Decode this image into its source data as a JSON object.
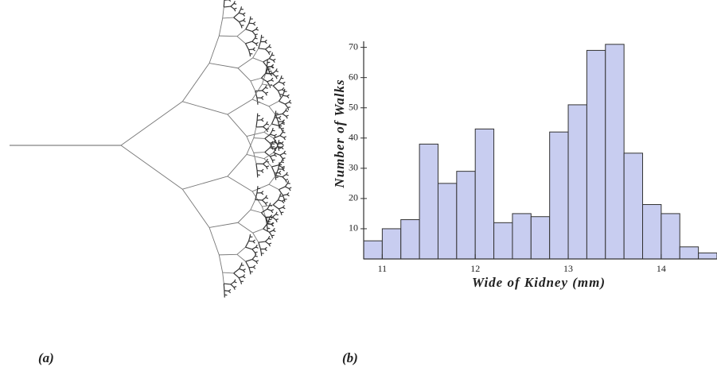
{
  "panel_labels": [
    "(a)",
    "(b)"
  ],
  "chart_data": {
    "type": "histogram",
    "x_label": "Wide of Kidney (mm)",
    "y_label": "Number of Walks",
    "bins": [
      10.8,
      11.0,
      11.2,
      11.4,
      11.6,
      11.8,
      12.0,
      12.2,
      12.4,
      12.6,
      12.8,
      13.0,
      13.2,
      13.4,
      13.6,
      13.8,
      14.0,
      14.2,
      14.4,
      14.6
    ],
    "values": [
      6,
      10,
      13,
      38,
      25,
      29,
      43,
      12,
      15,
      14,
      42,
      51,
      69,
      71,
      35,
      18,
      15,
      4,
      2
    ],
    "color": "#c8cdf0",
    "xlim": [
      10.8,
      14.6
    ],
    "ylim": [
      0,
      72
    ],
    "xticks": [
      11,
      12,
      13,
      14
    ],
    "yticks": [
      10,
      20,
      30,
      40,
      50,
      60,
      70
    ],
    "grid": false
  }
}
